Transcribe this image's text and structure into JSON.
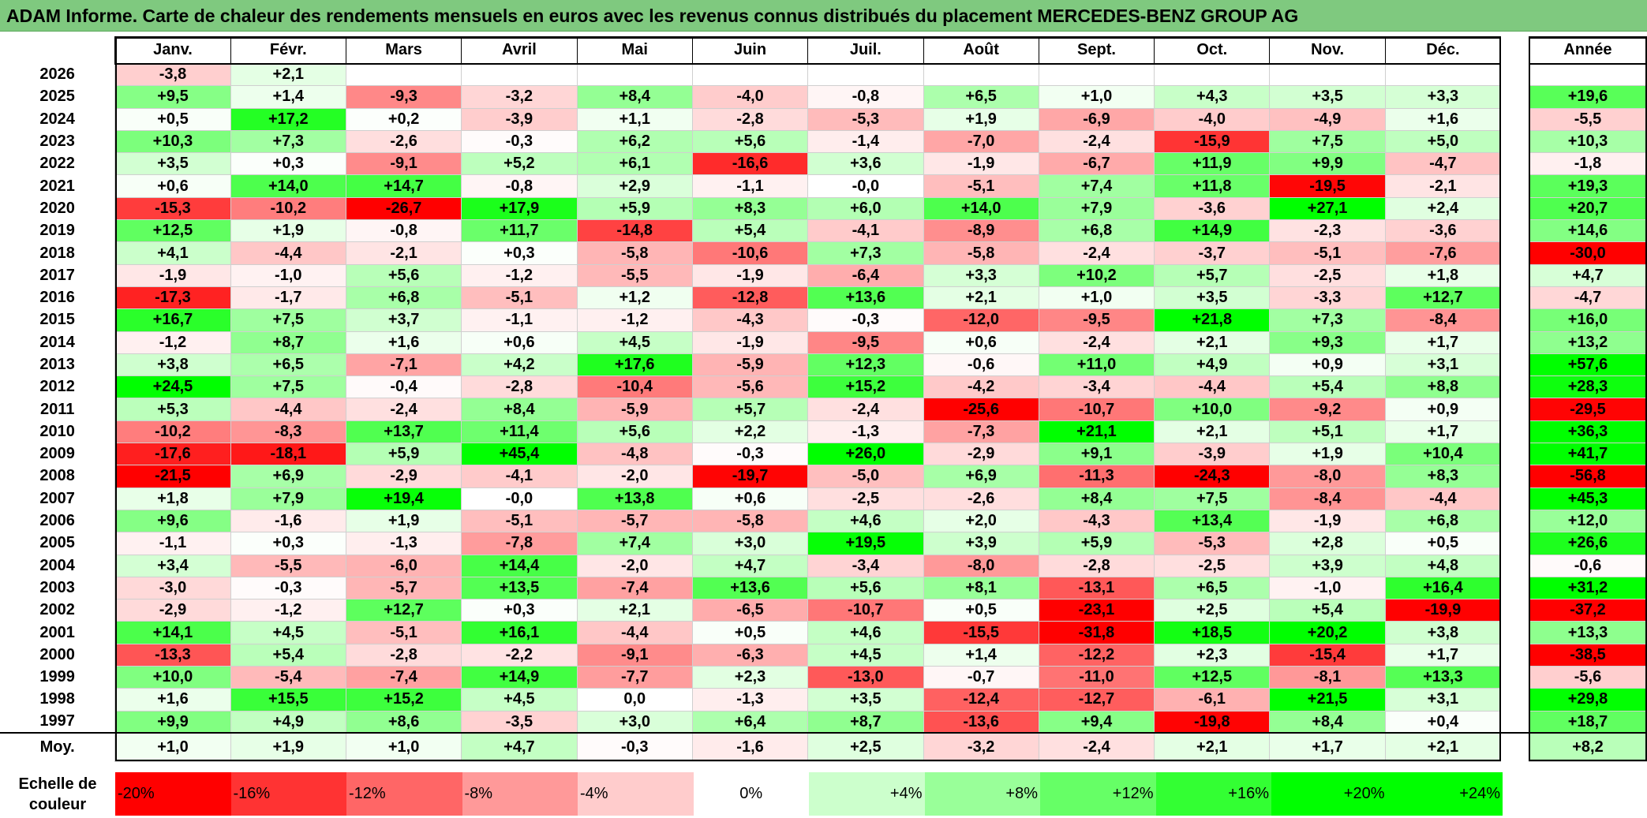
{
  "title": "ADAM Informe. Carte de chaleur des rendements mensuels en euros avec les revenus connus distribués du placement MERCEDES-BENZ GROUP AG",
  "colors": {
    "title_bg": "#7fc97f",
    "negative": "#ff0000",
    "zero": "#ffffff",
    "positive": "#00ff00"
  },
  "chart_data": {
    "type": "heatmap",
    "months": [
      "Janv.",
      "Févr.",
      "Mars",
      "Avril",
      "Mai",
      "Juin",
      "Juil.",
      "Août",
      "Sept.",
      "Oct.",
      "Nov.",
      "Déc."
    ],
    "year_header": "Année",
    "rows": [
      {
        "year": "2026",
        "months": [
          "-3,8",
          "+2,1",
          "",
          "",
          "",
          "",
          "",
          "",
          "",
          "",
          "",
          ""
        ],
        "annual": ""
      },
      {
        "year": "2025",
        "months": [
          "+9,5",
          "+1,4",
          "-9,3",
          "-3,2",
          "+8,4",
          "-4,0",
          "-0,8",
          "+6,5",
          "+1,0",
          "+4,3",
          "+3,5",
          "+3,3"
        ],
        "annual": "+19,6"
      },
      {
        "year": "2024",
        "months": [
          "+0,5",
          "+17,2",
          "+0,2",
          "-3,9",
          "+1,1",
          "-2,8",
          "-5,3",
          "+1,9",
          "-6,9",
          "-4,0",
          "-4,9",
          "+1,6"
        ],
        "annual": "-5,5"
      },
      {
        "year": "2023",
        "months": [
          "+10,3",
          "+7,3",
          "-2,6",
          "-0,3",
          "+6,2",
          "+5,6",
          "-1,4",
          "-7,0",
          "-2,4",
          "-15,9",
          "+7,5",
          "+5,0"
        ],
        "annual": "+10,3"
      },
      {
        "year": "2022",
        "months": [
          "+3,5",
          "+0,3",
          "-9,1",
          "+5,2",
          "+6,1",
          "-16,6",
          "+3,6",
          "-1,9",
          "-6,7",
          "+11,9",
          "+9,9",
          "-4,7"
        ],
        "annual": "-1,8"
      },
      {
        "year": "2021",
        "months": [
          "+0,6",
          "+14,0",
          "+14,7",
          "-0,8",
          "+2,9",
          "-1,1",
          "-0,0",
          "-5,1",
          "+7,4",
          "+11,8",
          "-19,5",
          "-2,1"
        ],
        "annual": "+19,3"
      },
      {
        "year": "2020",
        "months": [
          "-15,3",
          "-10,2",
          "-26,7",
          "+17,9",
          "+5,9",
          "+8,3",
          "+6,0",
          "+14,0",
          "+7,9",
          "-3,6",
          "+27,1",
          "+2,4"
        ],
        "annual": "+20,7"
      },
      {
        "year": "2019",
        "months": [
          "+12,5",
          "+1,9",
          "-0,8",
          "+11,7",
          "-14,8",
          "+5,4",
          "-4,1",
          "-8,9",
          "+6,8",
          "+14,9",
          "-2,3",
          "-3,6"
        ],
        "annual": "+14,6"
      },
      {
        "year": "2018",
        "months": [
          "+4,1",
          "-4,4",
          "-2,1",
          "+0,3",
          "-5,8",
          "-10,6",
          "+7,3",
          "-5,8",
          "-2,4",
          "-3,7",
          "-5,1",
          "-7,6"
        ],
        "annual": "-30,0"
      },
      {
        "year": "2017",
        "months": [
          "-1,9",
          "-1,0",
          "+5,6",
          "-1,2",
          "-5,5",
          "-1,9",
          "-6,4",
          "+3,3",
          "+10,2",
          "+5,7",
          "-2,5",
          "+1,8"
        ],
        "annual": "+4,7"
      },
      {
        "year": "2016",
        "months": [
          "-17,3",
          "-1,7",
          "+6,8",
          "-5,1",
          "+1,2",
          "-12,8",
          "+13,6",
          "+2,1",
          "+1,0",
          "+3,5",
          "-3,3",
          "+12,7"
        ],
        "annual": "-4,7"
      },
      {
        "year": "2015",
        "months": [
          "+16,7",
          "+7,5",
          "+3,7",
          "-1,1",
          "-1,2",
          "-4,3",
          "-0,3",
          "-12,0",
          "-9,5",
          "+21,8",
          "+7,3",
          "-8,4"
        ],
        "annual": "+16,0"
      },
      {
        "year": "2014",
        "months": [
          "-1,2",
          "+8,7",
          "+1,6",
          "+0,6",
          "+4,5",
          "-1,9",
          "-9,5",
          "+0,6",
          "-2,4",
          "+2,1",
          "+9,3",
          "+1,7"
        ],
        "annual": "+13,2"
      },
      {
        "year": "2013",
        "months": [
          "+3,8",
          "+6,5",
          "-7,1",
          "+4,2",
          "+17,6",
          "-5,9",
          "+12,3",
          "-0,6",
          "+11,0",
          "+4,9",
          "+0,9",
          "+3,1"
        ],
        "annual": "+57,6"
      },
      {
        "year": "2012",
        "months": [
          "+24,5",
          "+7,5",
          "-0,4",
          "-2,8",
          "-10,4",
          "-5,6",
          "+15,2",
          "-4,2",
          "-3,4",
          "-4,4",
          "+5,4",
          "+8,8"
        ],
        "annual": "+28,3"
      },
      {
        "year": "2011",
        "months": [
          "+5,3",
          "-4,4",
          "-2,4",
          "+8,4",
          "-5,9",
          "+5,7",
          "-2,4",
          "-25,6",
          "-10,7",
          "+10,0",
          "-9,2",
          "+0,9"
        ],
        "annual": "-29,5"
      },
      {
        "year": "2010",
        "months": [
          "-10,2",
          "-8,3",
          "+13,7",
          "+11,4",
          "+5,6",
          "+2,2",
          "-1,3",
          "-7,3",
          "+21,1",
          "+2,1",
          "+5,1",
          "+1,7"
        ],
        "annual": "+36,3"
      },
      {
        "year": "2009",
        "months": [
          "-17,6",
          "-18,1",
          "+5,9",
          "+45,4",
          "-4,8",
          "-0,3",
          "+26,0",
          "-2,9",
          "+9,1",
          "-3,9",
          "+1,9",
          "+10,4"
        ],
        "annual": "+41,7"
      },
      {
        "year": "2008",
        "months": [
          "-21,5",
          "+6,9",
          "-2,9",
          "-4,1",
          "-2,0",
          "-19,7",
          "-5,0",
          "+6,9",
          "-11,3",
          "-24,3",
          "-8,0",
          "+8,3"
        ],
        "annual": "-56,8"
      },
      {
        "year": "2007",
        "months": [
          "+1,8",
          "+7,9",
          "+19,4",
          "-0,0",
          "+13,8",
          "+0,6",
          "-2,5",
          "-2,6",
          "+8,4",
          "+7,5",
          "-8,4",
          "-4,4"
        ],
        "annual": "+45,3"
      },
      {
        "year": "2006",
        "months": [
          "+9,6",
          "-1,6",
          "+1,9",
          "-5,1",
          "-5,7",
          "-5,8",
          "+4,6",
          "+2,0",
          "-4,3",
          "+13,4",
          "-1,9",
          "+6,8"
        ],
        "annual": "+12,0"
      },
      {
        "year": "2005",
        "months": [
          "-1,1",
          "+0,3",
          "-1,3",
          "-7,8",
          "+7,4",
          "+3,0",
          "+19,5",
          "+3,9",
          "+5,9",
          "-5,3",
          "+2,8",
          "+0,5"
        ],
        "annual": "+26,6"
      },
      {
        "year": "2004",
        "months": [
          "+3,4",
          "-5,5",
          "-6,0",
          "+14,4",
          "-2,0",
          "+4,7",
          "-3,4",
          "-8,0",
          "-2,8",
          "-2,5",
          "+3,9",
          "+4,8"
        ],
        "annual": "-0,6"
      },
      {
        "year": "2003",
        "months": [
          "-3,0",
          "-0,3",
          "-5,7",
          "+13,5",
          "-7,4",
          "+13,6",
          "+5,6",
          "+8,1",
          "-13,1",
          "+6,5",
          "-1,0",
          "+16,4"
        ],
        "annual": "+31,2"
      },
      {
        "year": "2002",
        "months": [
          "-2,9",
          "-1,2",
          "+12,7",
          "+0,3",
          "+2,1",
          "-6,5",
          "-10,7",
          "+0,5",
          "-23,1",
          "+2,5",
          "+5,4",
          "-19,9"
        ],
        "annual": "-37,2"
      },
      {
        "year": "2001",
        "months": [
          "+14,1",
          "+4,5",
          "-5,1",
          "+16,1",
          "-4,4",
          "+0,5",
          "+4,6",
          "-15,5",
          "-31,8",
          "+18,5",
          "+20,2",
          "+3,8"
        ],
        "annual": "+13,3"
      },
      {
        "year": "2000",
        "months": [
          "-13,3",
          "+5,4",
          "-2,8",
          "-2,2",
          "-9,1",
          "-6,3",
          "+4,5",
          "+1,4",
          "-12,2",
          "+2,3",
          "-15,4",
          "+1,7"
        ],
        "annual": "-38,5"
      },
      {
        "year": "1999",
        "months": [
          "+10,0",
          "-5,4",
          "-7,4",
          "+14,9",
          "-7,7",
          "+2,3",
          "-13,0",
          "-0,7",
          "-11,0",
          "+12,5",
          "-8,1",
          "+13,3"
        ],
        "annual": "-5,6"
      },
      {
        "year": "1998",
        "months": [
          "+1,6",
          "+15,5",
          "+15,2",
          "+4,5",
          "0,0",
          "-1,3",
          "+3,5",
          "-12,4",
          "-12,7",
          "-6,1",
          "+21,5",
          "+3,1"
        ],
        "annual": "+29,8"
      },
      {
        "year": "1997",
        "months": [
          "+9,9",
          "+4,9",
          "+8,6",
          "-3,5",
          "+3,0",
          "+6,4",
          "+8,7",
          "-13,6",
          "+9,4",
          "-19,8",
          "+8,4",
          "+0,4"
        ],
        "annual": "+18,7"
      }
    ],
    "average": {
      "label": "Moy.",
      "months": [
        "+1,0",
        "+1,9",
        "+1,0",
        "+4,7",
        "-0,3",
        "-1,6",
        "+2,5",
        "-3,2",
        "-2,4",
        "+2,1",
        "+1,7",
        "+2,1"
      ],
      "annual": "+8,2"
    },
    "scale": {
      "label": "Echelle de couleur",
      "steps": [
        "-20%",
        "-16%",
        "-12%",
        "-8%",
        "-4%",
        "0%",
        "+4%",
        "+8%",
        "+12%",
        "+16%",
        "+20%",
        "+24%"
      ]
    }
  }
}
